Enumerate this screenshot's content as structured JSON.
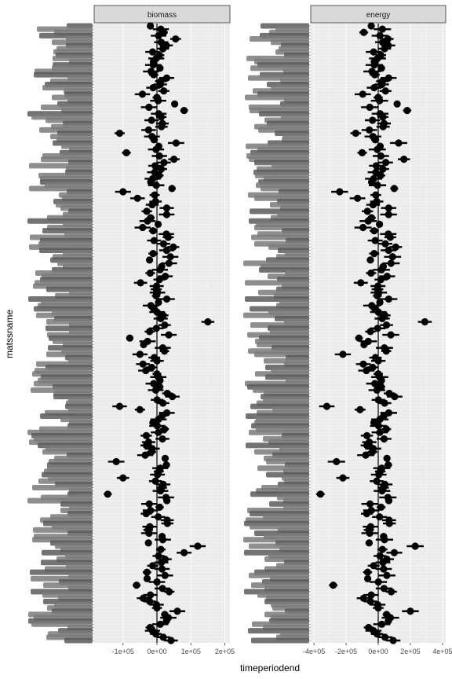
{
  "chart_data": {
    "type": "scatter",
    "xlabel": "timeperiodend",
    "ylabel": "matssname",
    "grid": true,
    "panels": [
      {
        "name": "biomass",
        "xlim": [
          -185000,
          215000
        ],
        "xticks": [
          -100000,
          0,
          100000,
          200000
        ],
        "xtick_labels": [
          "-1e+05",
          "0e+00",
          "1e+05",
          "2e+05"
        ],
        "y_center": 0
      },
      {
        "name": "energy",
        "xlim": [
          -420000,
          420000
        ],
        "xticks": [
          -400000,
          -200000,
          0,
          200000,
          400000
        ],
        "xtick_labels": [
          "-4e+05",
          "-2e+05",
          "0e+00",
          "2e+05",
          "4e+05"
        ],
        "y_center": 0
      }
    ],
    "outlier_rows": [
      {
        "row": 0.012,
        "biomass": 20000,
        "energy": -90000
      },
      {
        "row": 0.022,
        "biomass": 55000,
        "energy": 60000
      },
      {
        "row": 0.175,
        "biomass": -110000,
        "energy": -140000
      },
      {
        "row": 0.135,
        "biomass": 80000,
        "energy": 180000
      },
      {
        "row": 0.205,
        "biomass": -90000,
        "energy": -100000
      },
      {
        "row": 0.215,
        "biomass": 50000,
        "energy": 160000
      },
      {
        "row": 0.27,
        "biomass": -100000,
        "energy": -240000
      },
      {
        "row": 0.48,
        "biomass": 150000,
        "energy": 290000
      },
      {
        "row": 0.51,
        "biomass": -80000,
        "energy": -120000
      },
      {
        "row": 0.535,
        "biomass": -50000,
        "energy": -220000
      },
      {
        "row": 0.62,
        "biomass": -110000,
        "energy": -320000
      },
      {
        "row": 0.71,
        "biomass": -120000,
        "energy": -260000
      },
      {
        "row": 0.735,
        "biomass": -100000,
        "energy": -220000
      },
      {
        "row": 0.76,
        "biomass": -145000,
        "energy": -360000
      },
      {
        "row": 0.845,
        "biomass": 120000,
        "energy": 230000
      },
      {
        "row": 0.855,
        "biomass": 80000,
        "energy": 100000
      },
      {
        "row": 0.91,
        "biomass": -60000,
        "energy": -280000
      },
      {
        "row": 0.95,
        "biomass": 60000,
        "energy": 200000
      },
      {
        "row": 0.98,
        "biomass": -20000,
        "energy": -60000
      }
    ],
    "n_rows": 190,
    "spread": {
      "biomass": 20000,
      "energy": 45000
    }
  }
}
